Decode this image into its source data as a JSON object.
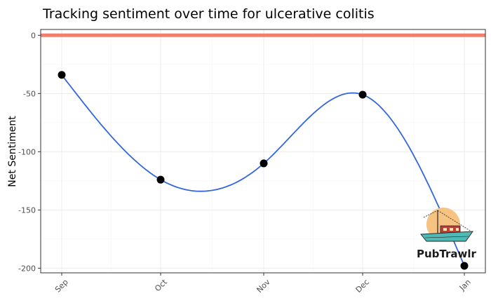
{
  "chart_data": {
    "type": "line",
    "title": "Tracking sentiment over time for ulcerative colitis",
    "xlabel": "",
    "ylabel": "Net Sentiment",
    "categories": [
      "Sep",
      "Oct",
      "Nov",
      "Dec",
      "Jan"
    ],
    "points": [
      {
        "x": "Sep",
        "y": -34
      },
      {
        "x": "Oct",
        "y": -124
      },
      {
        "x": "Nov",
        "y": -110
      },
      {
        "x": "Dec",
        "y": -51
      },
      {
        "x": "Jan",
        "y": -198
      }
    ],
    "yticks": [
      0,
      -50,
      -100,
      -150,
      -200
    ],
    "ytick_labels": [
      "0",
      "-50",
      "-100",
      "-150",
      "-200"
    ],
    "ylim": [
      -204,
      5
    ],
    "reference_line": {
      "y": 0,
      "color": "#f07f6e"
    },
    "smooth_color": "#3366dd",
    "point_color": "#000000",
    "grid": true
  },
  "logo": {
    "text": "PubTrawlr"
  }
}
